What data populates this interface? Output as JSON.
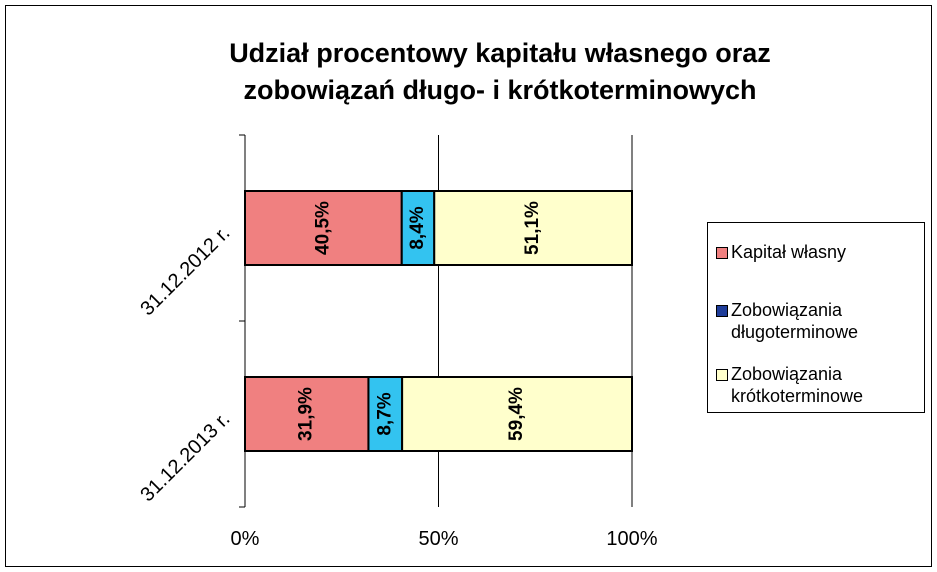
{
  "chart_data": {
    "type": "stacked_barh",
    "title": [
      "Udział procentowy kapitału własnego oraz",
      "zobowiązań długo- i krótkoterminowych"
    ],
    "categories": [
      "31.12.2012 r.",
      "31.12.2013 r."
    ],
    "series": [
      {
        "name": "Kapitał własny",
        "color": "#f08080",
        "legend_color": "#f08080",
        "values": [
          40.5,
          31.9
        ],
        "value_labels": [
          "40,5%",
          "31,9%"
        ]
      },
      {
        "name": "Zobowiązania długoterminowe",
        "color": "#33c3f0",
        "legend_color": "#1f3d99",
        "values": [
          8.4,
          8.7
        ],
        "value_labels": [
          "8,4%",
          "8,7%"
        ]
      },
      {
        "name": "Zobowiązania krótkoterminowe",
        "color": "#ffffcc",
        "legend_color": "#ffffcc",
        "values": [
          51.1,
          59.4
        ],
        "value_labels": [
          "51,1%",
          "59,4%"
        ]
      }
    ],
    "xlim": [
      0,
      100
    ],
    "xticks": [
      {
        "value": 0,
        "label": "0%"
      },
      {
        "value": 50,
        "label": "50%"
      },
      {
        "value": 100,
        "label": "100%"
      }
    ],
    "grid": true,
    "legend": "right"
  }
}
